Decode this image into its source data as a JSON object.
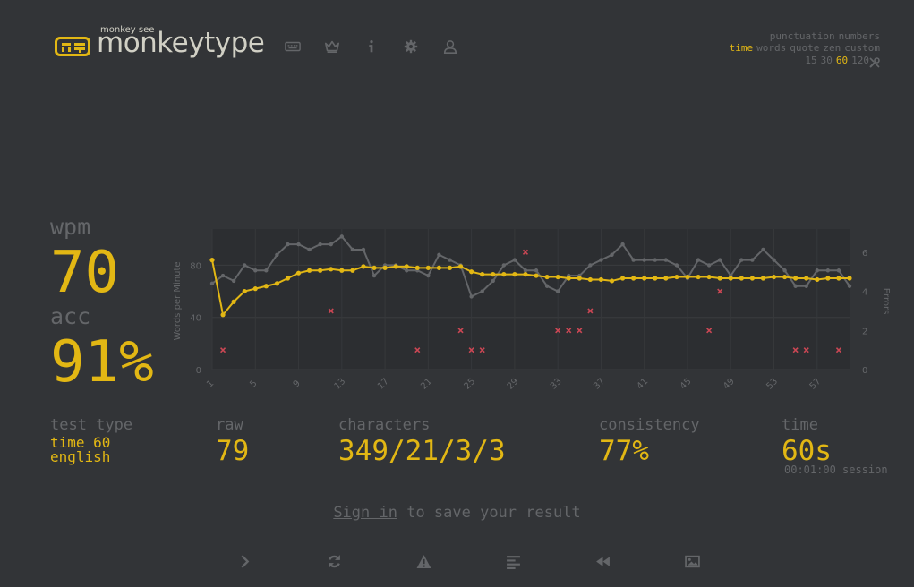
{
  "header": {
    "logo_top": "monkey see",
    "logo_text": "monkeytype",
    "nav": [
      "keyboard-icon",
      "crown-icon",
      "info-icon",
      "gear-icon",
      "user-icon"
    ]
  },
  "config": {
    "row1": [
      "punctuation",
      "numbers"
    ],
    "row2": [
      "time",
      "words",
      "quote",
      "zen",
      "custom"
    ],
    "row2_active": "time",
    "row3": [
      "15",
      "30",
      "60",
      "120"
    ],
    "row3_active": "60",
    "row3_icon": "wrench-icon"
  },
  "stats": {
    "wpm_label": "wpm",
    "wpm": "70",
    "acc_label": "acc",
    "acc": "91%",
    "test_type_label": "test type",
    "test_type_line1": "time 60",
    "test_type_line2": "english",
    "raw_label": "raw",
    "raw": "79",
    "characters_label": "characters",
    "characters": "349/21/3/3",
    "consistency_label": "consistency",
    "consistency": "77%",
    "time_label": "time",
    "time": "60s",
    "session": "00:01:00 session"
  },
  "footer": {
    "signin": "Sign in",
    "signin_rest": " to save your result",
    "buttons": [
      "next-test-icon",
      "restart-icon",
      "warning-icon",
      "word-history-icon",
      "replay-icon",
      "screenshot-icon"
    ]
  },
  "colors": {
    "bg": "#323437",
    "main": "#e2b714",
    "sub": "#646669",
    "text": "#d1d0c5",
    "error": "#ca4754"
  },
  "chart_data": {
    "type": "line",
    "ylabel": "Words per Minute",
    "y2label": "Errors",
    "x_ticks": [
      "1",
      "5",
      "9",
      "13",
      "17",
      "21",
      "25",
      "29",
      "33",
      "37",
      "41",
      "45",
      "49",
      "53",
      "57"
    ],
    "y_ticks": [
      "0",
      "40",
      "80"
    ],
    "y2_ticks": [
      "0",
      "2",
      "4",
      "6"
    ],
    "ylim": [
      0,
      105
    ],
    "y2lim": [
      0,
      7
    ],
    "x": [
      1,
      2,
      3,
      4,
      5,
      6,
      7,
      8,
      9,
      10,
      11,
      12,
      13,
      14,
      15,
      16,
      17,
      18,
      19,
      20,
      21,
      22,
      23,
      24,
      25,
      26,
      27,
      28,
      29,
      30,
      31,
      32,
      33,
      34,
      35,
      36,
      37,
      38,
      39,
      40,
      41,
      42,
      43,
      44,
      45,
      46,
      47,
      48,
      49,
      50,
      51,
      52,
      53,
      54,
      55,
      56,
      57,
      58,
      59,
      60
    ],
    "series": [
      {
        "name": "raw",
        "values": [
          66,
          72,
          68,
          80,
          76,
          76,
          88,
          96,
          96,
          92,
          96,
          96,
          102,
          92,
          92,
          72,
          80,
          80,
          76,
          76,
          72,
          88,
          84,
          80,
          56,
          60,
          68,
          80,
          84,
          76,
          76,
          64,
          60,
          72,
          72,
          80,
          84,
          88,
          96,
          84,
          84,
          84,
          84,
          80,
          70,
          84,
          80,
          84,
          72,
          84,
          84,
          92,
          84,
          76,
          64,
          64,
          76,
          76,
          76,
          64
        ]
      },
      {
        "name": "wpm",
        "values": [
          84,
          42,
          52,
          60,
          62,
          64,
          66,
          70,
          74,
          76,
          76,
          77,
          76,
          76,
          79,
          78,
          78,
          79,
          79,
          78,
          78,
          78,
          78,
          79,
          75,
          73,
          73,
          73,
          73,
          73,
          72,
          71,
          71,
          70,
          70,
          69,
          69,
          68,
          70,
          70,
          70,
          70,
          70,
          71,
          71,
          71,
          71,
          70,
          70,
          70,
          70,
          70,
          71,
          71,
          70,
          70,
          69,
          70,
          70,
          70
        ]
      },
      {
        "name": "errors",
        "points": [
          [
            2,
            1
          ],
          [
            12,
            3
          ],
          [
            20,
            1
          ],
          [
            24,
            2
          ],
          [
            25,
            1
          ],
          [
            26,
            1
          ],
          [
            30,
            6
          ],
          [
            33,
            2
          ],
          [
            34,
            2
          ],
          [
            35,
            2
          ],
          [
            36,
            3
          ],
          [
            47,
            2
          ],
          [
            48,
            4
          ],
          [
            55,
            1
          ],
          [
            56,
            1
          ],
          [
            59,
            1
          ]
        ]
      }
    ]
  }
}
